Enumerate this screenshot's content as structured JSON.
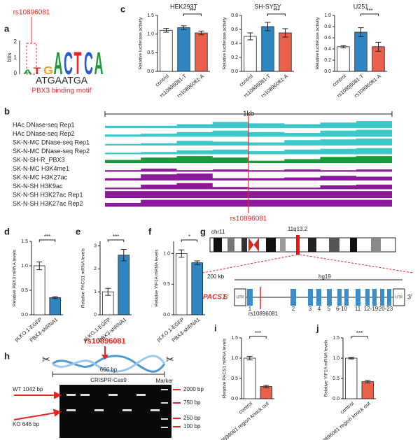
{
  "panel_labels": [
    "a",
    "b",
    "c",
    "d",
    "e",
    "f",
    "g",
    "h",
    "i",
    "j"
  ],
  "motif": {
    "snp": "rs10896081",
    "ylabel": "bits",
    "yticks": [
      "2",
      "1",
      "0"
    ],
    "logo": [
      "A",
      "T",
      "G",
      "A",
      "C",
      "T",
      "C",
      "A"
    ],
    "sequence": "ATGAATGA",
    "caption": "PBX3 binding motif"
  },
  "tracks": {
    "scale": "1kb",
    "snp": "rs10896081",
    "names": [
      "HAc DNase-seq Rep1",
      "HAc DNase-seq Rep2",
      "SK-N-MC DNase-seq Rep1",
      "SK-N-MC DNase-seq Rep2",
      "SK-N-SH-R_PBX3",
      "SK-N-MC H3K4me1",
      "SK-N-MC H3K27ac",
      "SK-N-SH H3K9ac",
      "SK-N-SH H3K27ac Rep1",
      "SK-N-SH H3K27ac Rep2"
    ]
  },
  "gene": {
    "chromosome": "chr11",
    "band": "11q13.2",
    "scale": "200 kb",
    "assembly": "hg19",
    "name": "PACS1",
    "five": "5′",
    "three": "3′",
    "utr": "UTR",
    "snp": "rs10896081",
    "exons": [
      "1",
      "2",
      "3",
      "4",
      "5",
      "6-10",
      "11",
      "12-19",
      "20-23"
    ]
  },
  "crispr": {
    "snp": "rs10896081",
    "length": "666 bp",
    "tool": "CRISPR-Cas9",
    "marker": "Marker",
    "wt": "WT 1042 bp",
    "ko": "KO 646 bp",
    "ladder": [
      "2000 bp",
      "750 bp",
      "250 bp",
      "100 bp"
    ]
  },
  "chart_data": [
    {
      "type": "bar",
      "title": "HEK293T",
      "ylabel": "Relative luciferase activity",
      "categories": [
        "control",
        "rs10896081-T",
        "rs10896081-A"
      ],
      "values": [
        1.1,
        1.17,
        1.03
      ],
      "errors": [
        0.05,
        0.05,
        0.05
      ],
      "colors": [
        "#ffffff",
        "#2e86c1",
        "#e8604c"
      ],
      "ylim": [
        0,
        1.5
      ],
      "yticks": [
        {
          "value": 0,
          "label": "0.0"
        },
        0.5,
        {
          "value": 1,
          "label": "1.0"
        },
        1.5
      ],
      "significance": "***"
    },
    {
      "type": "bar",
      "title": "SH-SY5Y",
      "ylabel": "Relative luciferase activity",
      "categories": [
        "control",
        "rs10896081-T",
        "rs10896081-A"
      ],
      "values": [
        0.5,
        0.64,
        0.55
      ],
      "errors": [
        0.05,
        0.06,
        0.06
      ],
      "colors": [
        "#ffffff",
        "#2e86c1",
        "#e8604c"
      ],
      "ylim": [
        0,
        0.8
      ],
      "yticks": [
        {
          "value": 0,
          "label": "0.0"
        },
        0.2,
        0.4,
        0.6,
        0.8
      ],
      "significance": "***"
    },
    {
      "type": "bar",
      "title": "U251",
      "ylabel": "Relative luciferase activity",
      "categories": [
        "control",
        "rs10896081-T",
        "rs10896081-A"
      ],
      "values": [
        0.44,
        0.7,
        0.44
      ],
      "errors": [
        0.02,
        0.08,
        0.08
      ],
      "colors": [
        "#ffffff",
        "#2e86c1",
        "#e8604c"
      ],
      "ylim": [
        0,
        1
      ],
      "yticks": [
        {
          "value": 0,
          "label": "0.0"
        },
        0.2,
        0.4,
        0.6,
        0.8,
        {
          "value": 1,
          "label": "1.0"
        }
      ],
      "significance": "***"
    },
    {
      "type": "bar",
      "ylabel": "Relative PBX3 mRNA levels",
      "categories": [
        "pLKO.1-EGFP",
        "PBX3-shRNA1"
      ],
      "values": [
        1.0,
        0.35
      ],
      "errors": [
        0.08,
        0.02
      ],
      "colors": [
        "#ffffff",
        "#2e86c1"
      ],
      "ylim": [
        0,
        1.5
      ],
      "yticks": [
        {
          "value": 0,
          "label": "0.0"
        },
        0.5,
        {
          "value": 1,
          "label": "1.0"
        },
        1.5
      ],
      "significance": "***"
    },
    {
      "type": "bar",
      "ylabel": "Relative PACS1 mRNA levels",
      "categories": [
        "pLKO.1-EGFP",
        "PBX3-shRNA1"
      ],
      "values": [
        1.0,
        2.6
      ],
      "errors": [
        0.15,
        0.25
      ],
      "colors": [
        "#ffffff",
        "#2e86c1"
      ],
      "ylim": [
        0,
        3.2
      ],
      "yticks": [
        0,
        1,
        2,
        3
      ],
      "significance": "***"
    },
    {
      "type": "bar",
      "ylabel": "Relative YIF1A mRNA levels",
      "categories": [
        "pLKO.1-EGFP",
        "PBX3-shRNA1"
      ],
      "values": [
        1.0,
        0.85
      ],
      "errors": [
        0.06,
        0.03
      ],
      "colors": [
        "#ffffff",
        "#2e86c1"
      ],
      "ylim": [
        0,
        1.2
      ],
      "yticks": [
        {
          "value": 0,
          "label": "0.0"
        },
        0.5,
        {
          "value": 1,
          "label": "1.0"
        }
      ],
      "significance": "*"
    },
    {
      "type": "bar",
      "ylabel": "Relative PACS1 mRNA levels",
      "categories": [
        "control",
        "rs10896081 region knock out"
      ],
      "values": [
        1.0,
        0.3
      ],
      "errors": [
        0.04,
        0.03
      ],
      "colors": [
        "#ffffff",
        "#e8604c"
      ],
      "ylim": [
        0,
        1.5
      ],
      "yticks": [
        {
          "value": 0,
          "label": "0.0"
        },
        0.5,
        {
          "value": 1,
          "label": "1.0"
        },
        1.5
      ],
      "significance": "***"
    },
    {
      "type": "bar",
      "ylabel": "Relative YIF1A mRNA levels",
      "categories": [
        "control",
        "rs10896081 region knock out"
      ],
      "values": [
        1.0,
        0.42
      ],
      "errors": [
        0.02,
        0.03
      ],
      "colors": [
        "#ffffff",
        "#e8604c"
      ],
      "ylim": [
        0,
        1.5
      ],
      "yticks": [
        {
          "value": 0,
          "label": "0.0"
        },
        0.5,
        {
          "value": 1,
          "label": "1.0"
        },
        1.5
      ],
      "significance": "***"
    }
  ]
}
